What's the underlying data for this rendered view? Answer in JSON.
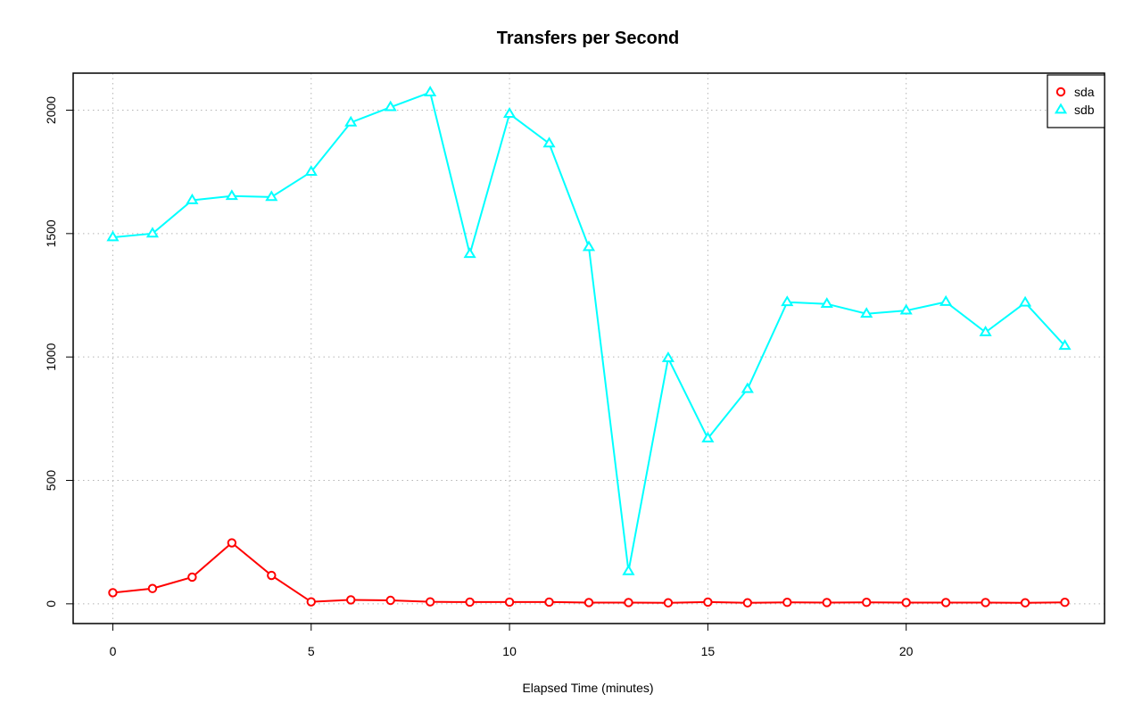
{
  "chart_data": {
    "type": "line",
    "title": "Transfers per Second",
    "xlabel": "Elapsed Time (minutes)",
    "ylabel": "",
    "x": [
      0,
      1,
      2,
      3,
      4,
      5,
      6,
      7,
      8,
      9,
      10,
      11,
      12,
      13,
      14,
      15,
      16,
      17,
      18,
      19,
      20,
      21,
      22,
      23,
      24
    ],
    "xlim": [
      -1,
      25
    ],
    "ylim": [
      -80,
      2150
    ],
    "xticks": [
      0,
      5,
      10,
      15,
      20
    ],
    "yticks": [
      0,
      500,
      1000,
      1500,
      2000
    ],
    "xtick_labels": [
      "0",
      "5",
      "10",
      "15",
      "20"
    ],
    "ytick_labels": [
      "0",
      "500",
      "1000",
      "1500",
      "2000"
    ],
    "grid": true,
    "legend_position": "top-right",
    "series": [
      {
        "name": "sda",
        "color": "#ff0000",
        "marker": "circle",
        "values": [
          45,
          62,
          108,
          247,
          115,
          8,
          16,
          14,
          8,
          7,
          7,
          7,
          5,
          5,
          4,
          7,
          4,
          6,
          5,
          6,
          5,
          5,
          5,
          4,
          6
        ]
      },
      {
        "name": "sdb",
        "color": "#00ffff",
        "marker": "triangle",
        "values": [
          1485,
          1500,
          1635,
          1652,
          1648,
          1750,
          1950,
          2012,
          2072,
          1417,
          1985,
          1865,
          1445,
          132,
          995,
          670,
          870,
          1222,
          1215,
          1175,
          1188,
          1223,
          1100,
          1220,
          1045
        ]
      }
    ]
  }
}
